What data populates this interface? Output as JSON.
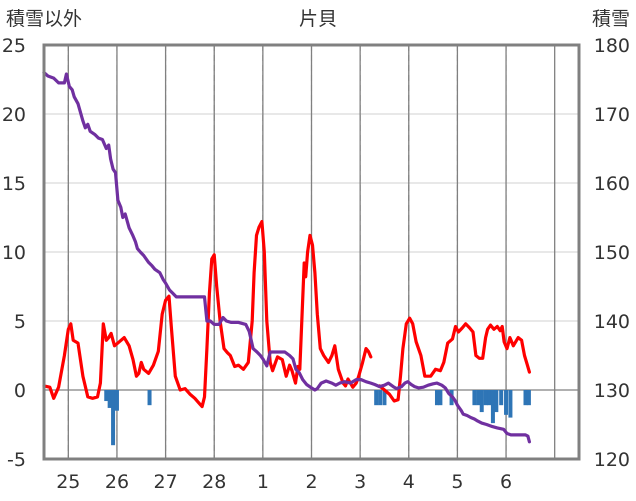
{
  "chart_data": {
    "type": "line",
    "title": "片貝",
    "left_axis_label": "積雪以外",
    "right_axis_label": "積雪",
    "y_left": {
      "min": -5,
      "max": 25,
      "ticks": [
        "25",
        "20",
        "15",
        "10",
        "5",
        "0",
        "-5"
      ]
    },
    "y_right": {
      "min": 120,
      "max": 180,
      "ticks": [
        "180",
        "170",
        "160",
        "150",
        "140",
        "130",
        "120"
      ]
    },
    "x": {
      "min": 24.5,
      "max": 35.5,
      "tick_positions": [
        25,
        26,
        27,
        28,
        29,
        30,
        31,
        32,
        33,
        34
      ],
      "tick_labels": [
        "25",
        "26",
        "27",
        "28",
        "1",
        "2",
        "3",
        "4",
        "5",
        "6"
      ]
    },
    "colors": {
      "temperature": "#ff0000",
      "snow_depth": "#7030a0",
      "precipitation": "#2e75b6",
      "grid": "#808080",
      "frame": "#808080"
    },
    "series": [
      {
        "key": "temperature",
        "axis": "left",
        "points": [
          [
            24.5,
            0.3
          ],
          [
            24.62,
            0.2
          ],
          [
            24.7,
            -0.6
          ],
          [
            24.8,
            0.2
          ],
          [
            24.92,
            2.5
          ],
          [
            25.0,
            4.4
          ],
          [
            25.05,
            4.8
          ],
          [
            25.1,
            3.6
          ],
          [
            25.2,
            3.4
          ],
          [
            25.3,
            1.0
          ],
          [
            25.4,
            -0.5
          ],
          [
            25.5,
            -0.6
          ],
          [
            25.6,
            -0.5
          ],
          [
            25.66,
            0.5
          ],
          [
            25.72,
            4.8
          ],
          [
            25.78,
            3.6
          ],
          [
            25.83,
            3.8
          ],
          [
            25.88,
            4.1
          ],
          [
            25.95,
            3.2
          ],
          [
            26.05,
            3.5
          ],
          [
            26.15,
            3.8
          ],
          [
            26.25,
            3.2
          ],
          [
            26.33,
            2.2
          ],
          [
            26.4,
            1.0
          ],
          [
            26.45,
            1.2
          ],
          [
            26.5,
            2.0
          ],
          [
            26.55,
            1.5
          ],
          [
            26.65,
            1.2
          ],
          [
            26.75,
            1.8
          ],
          [
            26.85,
            2.8
          ],
          [
            26.93,
            5.5
          ],
          [
            27.0,
            6.5
          ],
          [
            27.07,
            6.8
          ],
          [
            27.12,
            4.5
          ],
          [
            27.2,
            1.0
          ],
          [
            27.3,
            0.0
          ],
          [
            27.4,
            0.1
          ],
          [
            27.5,
            -0.3
          ],
          [
            27.6,
            -0.6
          ],
          [
            27.7,
            -1.0
          ],
          [
            27.75,
            -1.2
          ],
          [
            27.8,
            -0.5
          ],
          [
            27.85,
            3.0
          ],
          [
            27.9,
            7.0
          ],
          [
            27.95,
            9.5
          ],
          [
            28.0,
            9.8
          ],
          [
            28.05,
            7.5
          ],
          [
            28.12,
            5.0
          ],
          [
            28.2,
            3.0
          ],
          [
            28.27,
            2.7
          ],
          [
            28.33,
            2.5
          ],
          [
            28.42,
            1.7
          ],
          [
            28.5,
            1.8
          ],
          [
            28.6,
            1.5
          ],
          [
            28.7,
            2.0
          ],
          [
            28.78,
            5.0
          ],
          [
            28.82,
            8.5
          ],
          [
            28.87,
            11.2
          ],
          [
            28.92,
            11.8
          ],
          [
            28.98,
            12.2
          ],
          [
            29.03,
            10.0
          ],
          [
            29.08,
            5.0
          ],
          [
            29.15,
            2.0
          ],
          [
            29.2,
            1.4
          ],
          [
            29.3,
            2.4
          ],
          [
            29.4,
            2.2
          ],
          [
            29.48,
            1.0
          ],
          [
            29.55,
            1.8
          ],
          [
            29.6,
            1.4
          ],
          [
            29.67,
            0.5
          ],
          [
            29.72,
            1.7
          ],
          [
            29.76,
            1.5
          ],
          [
            29.8,
            5.0
          ],
          [
            29.85,
            9.2
          ],
          [
            29.88,
            8.2
          ],
          [
            29.92,
            10.0
          ],
          [
            29.97,
            11.2
          ],
          [
            30.02,
            10.5
          ],
          [
            30.07,
            8.5
          ],
          [
            30.12,
            5.5
          ],
          [
            30.18,
            3.0
          ],
          [
            30.25,
            2.5
          ],
          [
            30.35,
            2.0
          ],
          [
            30.42,
            2.5
          ],
          [
            30.48,
            3.2
          ],
          [
            30.55,
            1.5
          ],
          [
            30.65,
            0.5
          ],
          [
            30.7,
            0.3
          ],
          [
            30.75,
            0.8
          ],
          [
            30.85,
            0.2
          ],
          [
            30.92,
            0.5
          ],
          [
            30.97,
            1.0
          ],
          [
            31.05,
            2.0
          ],
          [
            31.12,
            3.0
          ],
          [
            31.17,
            2.8
          ],
          [
            31.22,
            2.4
          ],
          [
            31.35,
            null
          ],
          [
            31.4,
            0.3
          ],
          [
            31.5,
            0.0
          ],
          [
            31.6,
            -0.3
          ],
          [
            31.7,
            -0.8
          ],
          [
            31.78,
            -0.7
          ],
          [
            31.83,
            1.0
          ],
          [
            31.88,
            3.0
          ],
          [
            31.95,
            4.8
          ],
          [
            32.02,
            5.2
          ],
          [
            32.08,
            4.8
          ],
          [
            32.15,
            3.5
          ],
          [
            32.25,
            2.5
          ],
          [
            32.33,
            1.0
          ],
          [
            32.45,
            1.0
          ],
          [
            32.55,
            1.5
          ],
          [
            32.65,
            1.4
          ],
          [
            32.72,
            2.0
          ],
          [
            32.8,
            3.4
          ],
          [
            32.9,
            3.7
          ],
          [
            32.96,
            4.6
          ],
          [
            33.02,
            4.2
          ],
          [
            33.1,
            4.5
          ],
          [
            33.17,
            4.8
          ],
          [
            33.25,
            4.5
          ],
          [
            33.32,
            4.2
          ],
          [
            33.38,
            2.5
          ],
          [
            33.45,
            2.3
          ],
          [
            33.52,
            2.3
          ],
          [
            33.58,
            3.8
          ],
          [
            33.62,
            4.4
          ],
          [
            33.68,
            4.7
          ],
          [
            33.75,
            4.4
          ],
          [
            33.82,
            4.6
          ],
          [
            33.88,
            4.3
          ],
          [
            33.92,
            4.6
          ],
          [
            33.96,
            3.5
          ],
          [
            34.02,
            3.0
          ],
          [
            34.08,
            3.8
          ],
          [
            34.15,
            3.2
          ],
          [
            34.25,
            3.8
          ],
          [
            34.32,
            3.6
          ],
          [
            34.38,
            2.5
          ],
          [
            34.44,
            1.8
          ],
          [
            34.48,
            1.3
          ]
        ]
      },
      {
        "key": "snow_depth",
        "axis": "right",
        "points": [
          [
            24.5,
            176.0
          ],
          [
            24.58,
            175.5
          ],
          [
            24.7,
            175.2
          ],
          [
            24.8,
            174.5
          ],
          [
            24.92,
            174.5
          ],
          [
            24.96,
            175.8
          ],
          [
            25.02,
            174.0
          ],
          [
            25.08,
            173.5
          ],
          [
            25.12,
            172.5
          ],
          [
            25.2,
            171.5
          ],
          [
            25.3,
            169.0
          ],
          [
            25.35,
            168.0
          ],
          [
            25.4,
            168.5
          ],
          [
            25.45,
            167.5
          ],
          [
            25.55,
            167.0
          ],
          [
            25.62,
            166.5
          ],
          [
            25.7,
            166.3
          ],
          [
            25.78,
            165.0
          ],
          [
            25.83,
            165.5
          ],
          [
            25.87,
            163.5
          ],
          [
            25.92,
            162.0
          ],
          [
            25.97,
            161.5
          ],
          [
            26.02,
            157.5
          ],
          [
            26.08,
            156.5
          ],
          [
            26.12,
            155.0
          ],
          [
            26.17,
            155.5
          ],
          [
            26.25,
            153.5
          ],
          [
            26.32,
            152.5
          ],
          [
            26.38,
            151.5
          ],
          [
            26.42,
            150.5
          ],
          [
            26.48,
            150.0
          ],
          [
            26.55,
            149.5
          ],
          [
            26.65,
            148.5
          ],
          [
            26.72,
            148.0
          ],
          [
            26.78,
            147.5
          ],
          [
            26.88,
            147.0
          ],
          [
            26.95,
            146.0
          ],
          [
            27.0,
            145.5
          ],
          [
            27.08,
            144.5
          ],
          [
            27.15,
            144.0
          ],
          [
            27.22,
            143.5
          ],
          [
            27.4,
            143.5
          ],
          [
            27.6,
            143.5
          ],
          [
            27.8,
            143.5
          ],
          [
            27.85,
            140.0
          ],
          [
            27.92,
            140.0
          ],
          [
            28.0,
            139.5
          ],
          [
            28.1,
            139.5
          ],
          [
            28.18,
            140.5
          ],
          [
            28.25,
            140.0
          ],
          [
            28.35,
            139.8
          ],
          [
            28.5,
            139.8
          ],
          [
            28.65,
            139.5
          ],
          [
            28.72,
            138.5
          ],
          [
            28.8,
            136.0
          ],
          [
            28.88,
            135.5
          ],
          [
            28.95,
            135.0
          ],
          [
            29.0,
            134.5
          ],
          [
            29.08,
            133.5
          ],
          [
            29.15,
            135.5
          ],
          [
            29.25,
            135.5
          ],
          [
            29.35,
            135.5
          ],
          [
            29.45,
            135.5
          ],
          [
            29.55,
            135.0
          ],
          [
            29.62,
            134.5
          ],
          [
            29.68,
            133.0
          ],
          [
            29.75,
            132.5
          ],
          [
            29.82,
            131.5
          ],
          [
            29.9,
            130.8
          ],
          [
            30.0,
            130.3
          ],
          [
            30.07,
            130.0
          ],
          [
            30.12,
            130.2
          ],
          [
            30.2,
            131.0
          ],
          [
            30.3,
            131.3
          ],
          [
            30.42,
            131.0
          ],
          [
            30.5,
            130.7
          ],
          [
            30.58,
            131.0
          ],
          [
            30.68,
            131.2
          ],
          [
            30.8,
            131.0
          ],
          [
            30.92,
            131.5
          ],
          [
            31.02,
            131.5
          ],
          [
            31.12,
            131.2
          ],
          [
            31.22,
            131.0
          ],
          [
            31.3,
            130.8
          ],
          [
            31.4,
            130.5
          ],
          [
            31.5,
            130.7
          ],
          [
            31.58,
            131.0
          ],
          [
            31.68,
            130.5
          ],
          [
            31.75,
            130.2
          ],
          [
            31.85,
            130.5
          ],
          [
            31.92,
            131.0
          ],
          [
            31.98,
            131.2
          ],
          [
            32.05,
            130.8
          ],
          [
            32.12,
            130.5
          ],
          [
            32.2,
            130.3
          ],
          [
            32.3,
            130.4
          ],
          [
            32.4,
            130.7
          ],
          [
            32.5,
            130.9
          ],
          [
            32.58,
            131.0
          ],
          [
            32.68,
            130.7
          ],
          [
            32.75,
            130.3
          ],
          [
            32.82,
            129.5
          ],
          [
            32.9,
            129.0
          ],
          [
            32.95,
            128.5
          ],
          [
            33.0,
            127.8
          ],
          [
            33.08,
            127.0
          ],
          [
            33.12,
            126.5
          ],
          [
            33.2,
            126.3
          ],
          [
            33.28,
            126.0
          ],
          [
            33.35,
            125.8
          ],
          [
            33.42,
            125.5
          ],
          [
            33.5,
            125.2
          ],
          [
            33.6,
            125.0
          ],
          [
            33.72,
            124.7
          ],
          [
            33.82,
            124.5
          ],
          [
            33.95,
            124.3
          ],
          [
            34.02,
            123.7
          ],
          [
            34.1,
            123.5
          ],
          [
            34.2,
            123.5
          ],
          [
            34.3,
            123.5
          ],
          [
            34.4,
            123.5
          ],
          [
            34.45,
            123.3
          ],
          [
            34.48,
            122.5
          ]
        ]
      },
      {
        "key": "precipitation",
        "axis": "left",
        "bars": [
          [
            25.78,
            -0.8
          ],
          [
            25.85,
            -1.3
          ],
          [
            25.92,
            -4.0
          ],
          [
            26.0,
            -1.5
          ],
          [
            26.67,
            -1.1
          ],
          [
            31.33,
            -1.1
          ],
          [
            31.41,
            -1.1
          ],
          [
            31.5,
            -1.1
          ],
          [
            32.58,
            -1.1
          ],
          [
            32.65,
            -1.1
          ],
          [
            32.88,
            -1.1
          ],
          [
            33.35,
            -1.1
          ],
          [
            33.43,
            -1.1
          ],
          [
            33.5,
            -1.6
          ],
          [
            33.58,
            -1.1
          ],
          [
            33.65,
            -1.1
          ],
          [
            33.73,
            -2.4
          ],
          [
            33.8,
            -1.6
          ],
          [
            33.9,
            -1.1
          ],
          [
            34.0,
            -1.8
          ],
          [
            34.09,
            -2.0
          ],
          [
            34.4,
            -1.1
          ],
          [
            34.47,
            -1.1
          ]
        ]
      }
    ]
  }
}
